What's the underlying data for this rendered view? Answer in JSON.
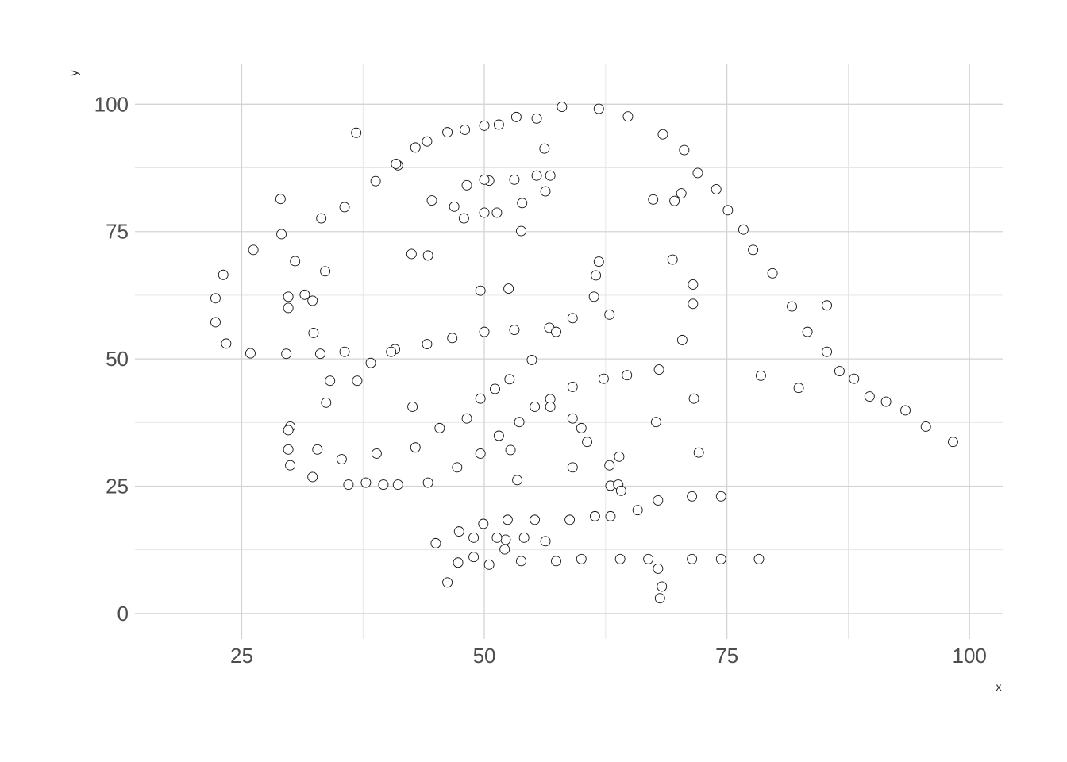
{
  "chart_data": {
    "type": "scatter",
    "title": "",
    "xlabel": "x",
    "ylabel": "y",
    "xlim": [
      14,
      103.5
    ],
    "ylim": [
      -5,
      108
    ],
    "x_ticks": [
      25,
      50,
      75,
      100
    ],
    "x_tick_labels": [
      "25",
      "50",
      "75",
      "100"
    ],
    "y_ticks": [
      0,
      25,
      50,
      75,
      100
    ],
    "y_tick_labels": [
      "0",
      "25",
      "50",
      "75",
      "100"
    ],
    "grid": true,
    "legend": "none",
    "colors": {
      "point_stroke": "#111111",
      "point_fill": "#ffffff",
      "grid": "#d4d4d4",
      "tick_text": "#4d4d4d",
      "background": "#ffffff"
    },
    "points": [
      {
        "x": 32.3,
        "y": 61.4
      },
      {
        "x": 53.4,
        "y": 26.2
      },
      {
        "x": 63.9,
        "y": 30.8
      },
      {
        "x": 70.3,
        "y": 82.5
      },
      {
        "x": 34.1,
        "y": 45.7
      },
      {
        "x": 67.7,
        "y": 37.6
      },
      {
        "x": 53.3,
        "y": 97.5
      },
      {
        "x": 63.0,
        "y": 25.1
      },
      {
        "x": 67.4,
        "y": 81.3
      },
      {
        "x": 32.4,
        "y": 55.1
      },
      {
        "x": 71.6,
        "y": 42.2
      },
      {
        "x": 52.7,
        "y": 32.1
      },
      {
        "x": 72.1,
        "y": 31.6
      },
      {
        "x": 50.5,
        "y": 85.0
      },
      {
        "x": 49.6,
        "y": 63.4
      },
      {
        "x": 56.2,
        "y": 91.3
      },
      {
        "x": 62.9,
        "y": 58.7
      },
      {
        "x": 42.5,
        "y": 70.6
      },
      {
        "x": 52.2,
        "y": 14.5
      },
      {
        "x": 82.4,
        "y": 44.3
      },
      {
        "x": 33.6,
        "y": 67.2
      },
      {
        "x": 42.6,
        "y": 40.6
      },
      {
        "x": 36.8,
        "y": 94.4
      },
      {
        "x": 30.5,
        "y": 69.2
      },
      {
        "x": 41.1,
        "y": 88.0
      },
      {
        "x": 85.3,
        "y": 60.5
      },
      {
        "x": 40.8,
        "y": 51.9
      },
      {
        "x": 53.8,
        "y": 75.1
      },
      {
        "x": 60.0,
        "y": 36.4
      },
      {
        "x": 44.2,
        "y": 70.3
      },
      {
        "x": 29.0,
        "y": 81.4
      },
      {
        "x": 44.6,
        "y": 81.1
      },
      {
        "x": 52.5,
        "y": 63.8
      },
      {
        "x": 69.6,
        "y": 81.0
      },
      {
        "x": 59.1,
        "y": 28.7
      },
      {
        "x": 78.5,
        "y": 46.7
      },
      {
        "x": 22.3,
        "y": 57.2
      },
      {
        "x": 22.3,
        "y": 61.9
      },
      {
        "x": 23.1,
        "y": 66.5
      },
      {
        "x": 23.4,
        "y": 53.0
      },
      {
        "x": 26.2,
        "y": 71.4
      },
      {
        "x": 29.1,
        "y": 74.5
      },
      {
        "x": 33.2,
        "y": 77.6
      },
      {
        "x": 35.6,
        "y": 79.8
      },
      {
        "x": 38.8,
        "y": 84.9
      },
      {
        "x": 40.9,
        "y": 88.3
      },
      {
        "x": 42.9,
        "y": 91.5
      },
      {
        "x": 44.1,
        "y": 92.7
      },
      {
        "x": 46.2,
        "y": 94.5
      },
      {
        "x": 48.0,
        "y": 95.0
      },
      {
        "x": 50.0,
        "y": 95.8
      },
      {
        "x": 51.5,
        "y": 96.0
      },
      {
        "x": 55.4,
        "y": 97.2
      },
      {
        "x": 58.0,
        "y": 99.5
      },
      {
        "x": 61.8,
        "y": 99.1
      },
      {
        "x": 64.8,
        "y": 97.6
      },
      {
        "x": 68.4,
        "y": 94.1
      },
      {
        "x": 70.6,
        "y": 91.0
      },
      {
        "x": 72.0,
        "y": 86.5
      },
      {
        "x": 73.9,
        "y": 83.3
      },
      {
        "x": 75.1,
        "y": 79.2
      },
      {
        "x": 76.7,
        "y": 75.4
      },
      {
        "x": 77.7,
        "y": 71.4
      },
      {
        "x": 79.7,
        "y": 66.8
      },
      {
        "x": 81.7,
        "y": 60.3
      },
      {
        "x": 83.3,
        "y": 55.3
      },
      {
        "x": 85.3,
        "y": 51.4
      },
      {
        "x": 86.6,
        "y": 47.6
      },
      {
        "x": 88.1,
        "y": 46.1
      },
      {
        "x": 89.7,
        "y": 42.6
      },
      {
        "x": 91.4,
        "y": 41.6
      },
      {
        "x": 93.4,
        "y": 39.9
      },
      {
        "x": 95.5,
        "y": 36.7
      },
      {
        "x": 98.3,
        "y": 33.7
      },
      {
        "x": 29.8,
        "y": 62.2
      },
      {
        "x": 29.8,
        "y": 60.0
      },
      {
        "x": 31.5,
        "y": 62.6
      },
      {
        "x": 25.9,
        "y": 51.1
      },
      {
        "x": 29.6,
        "y": 51.0
      },
      {
        "x": 33.1,
        "y": 51.0
      },
      {
        "x": 35.6,
        "y": 51.4
      },
      {
        "x": 38.3,
        "y": 49.2
      },
      {
        "x": 40.4,
        "y": 51.4
      },
      {
        "x": 44.1,
        "y": 52.9
      },
      {
        "x": 46.7,
        "y": 54.1
      },
      {
        "x": 50.0,
        "y": 55.3
      },
      {
        "x": 53.1,
        "y": 55.7
      },
      {
        "x": 56.7,
        "y": 56.1
      },
      {
        "x": 57.4,
        "y": 55.3
      },
      {
        "x": 59.1,
        "y": 58.0
      },
      {
        "x": 61.3,
        "y": 62.2
      },
      {
        "x": 61.5,
        "y": 66.4
      },
      {
        "x": 61.8,
        "y": 69.1
      },
      {
        "x": 69.4,
        "y": 69.5
      },
      {
        "x": 71.5,
        "y": 64.6
      },
      {
        "x": 71.5,
        "y": 60.8
      },
      {
        "x": 70.4,
        "y": 53.7
      },
      {
        "x": 68.0,
        "y": 47.9
      },
      {
        "x": 64.7,
        "y": 46.8
      },
      {
        "x": 62.3,
        "y": 46.1
      },
      {
        "x": 46.9,
        "y": 79.9
      },
      {
        "x": 47.9,
        "y": 77.6
      },
      {
        "x": 48.2,
        "y": 84.1
      },
      {
        "x": 50.0,
        "y": 85.2
      },
      {
        "x": 50.0,
        "y": 78.7
      },
      {
        "x": 51.3,
        "y": 78.7
      },
      {
        "x": 53.1,
        "y": 85.2
      },
      {
        "x": 53.9,
        "y": 80.6
      },
      {
        "x": 55.4,
        "y": 86.0
      },
      {
        "x": 56.3,
        "y": 82.9
      },
      {
        "x": 56.8,
        "y": 86.0
      },
      {
        "x": 33.7,
        "y": 41.4
      },
      {
        "x": 36.9,
        "y": 45.7
      },
      {
        "x": 30.0,
        "y": 36.7
      },
      {
        "x": 29.8,
        "y": 36.0
      },
      {
        "x": 29.8,
        "y": 32.2
      },
      {
        "x": 30.0,
        "y": 29.1
      },
      {
        "x": 32.3,
        "y": 26.8
      },
      {
        "x": 32.8,
        "y": 32.2
      },
      {
        "x": 35.3,
        "y": 30.3
      },
      {
        "x": 36.0,
        "y": 25.3
      },
      {
        "x": 37.8,
        "y": 25.7
      },
      {
        "x": 38.9,
        "y": 31.4
      },
      {
        "x": 39.6,
        "y": 25.3
      },
      {
        "x": 41.1,
        "y": 25.3
      },
      {
        "x": 42.9,
        "y": 32.6
      },
      {
        "x": 44.2,
        "y": 25.7
      },
      {
        "x": 45.4,
        "y": 36.4
      },
      {
        "x": 47.2,
        "y": 28.7
      },
      {
        "x": 48.2,
        "y": 38.3
      },
      {
        "x": 49.6,
        "y": 31.4
      },
      {
        "x": 49.6,
        "y": 42.2
      },
      {
        "x": 51.1,
        "y": 44.1
      },
      {
        "x": 51.5,
        "y": 34.9
      },
      {
        "x": 52.6,
        "y": 46.0
      },
      {
        "x": 53.6,
        "y": 37.6
      },
      {
        "x": 54.9,
        "y": 49.8
      },
      {
        "x": 55.2,
        "y": 40.6
      },
      {
        "x": 56.8,
        "y": 42.1
      },
      {
        "x": 56.8,
        "y": 40.6
      },
      {
        "x": 59.1,
        "y": 44.5
      },
      {
        "x": 59.1,
        "y": 38.3
      },
      {
        "x": 60.6,
        "y": 33.7
      },
      {
        "x": 62.9,
        "y": 29.1
      },
      {
        "x": 63.8,
        "y": 25.3
      },
      {
        "x": 64.1,
        "y": 24.1
      },
      {
        "x": 45.0,
        "y": 13.8
      },
      {
        "x": 47.4,
        "y": 16.1
      },
      {
        "x": 48.9,
        "y": 14.9
      },
      {
        "x": 49.9,
        "y": 17.6
      },
      {
        "x": 51.3,
        "y": 14.9
      },
      {
        "x": 52.1,
        "y": 12.6
      },
      {
        "x": 52.4,
        "y": 18.4
      },
      {
        "x": 54.1,
        "y": 14.9
      },
      {
        "x": 55.2,
        "y": 18.4
      },
      {
        "x": 56.3,
        "y": 14.2
      },
      {
        "x": 58.8,
        "y": 18.4
      },
      {
        "x": 61.4,
        "y": 19.1
      },
      {
        "x": 63.0,
        "y": 19.1
      },
      {
        "x": 65.8,
        "y": 20.3
      },
      {
        "x": 67.9,
        "y": 22.2
      },
      {
        "x": 71.4,
        "y": 23.0
      },
      {
        "x": 74.4,
        "y": 23.0
      },
      {
        "x": 46.2,
        "y": 6.1
      },
      {
        "x": 47.3,
        "y": 10.0
      },
      {
        "x": 48.9,
        "y": 11.1
      },
      {
        "x": 50.5,
        "y": 9.6
      },
      {
        "x": 53.8,
        "y": 10.3
      },
      {
        "x": 57.4,
        "y": 10.3
      },
      {
        "x": 60.0,
        "y": 10.7
      },
      {
        "x": 64.0,
        "y": 10.7
      },
      {
        "x": 66.9,
        "y": 10.7
      },
      {
        "x": 67.9,
        "y": 8.8
      },
      {
        "x": 68.3,
        "y": 5.3
      },
      {
        "x": 68.1,
        "y": 3.0
      },
      {
        "x": 71.4,
        "y": 10.7
      },
      {
        "x": 74.4,
        "y": 10.7
      },
      {
        "x": 78.3,
        "y": 10.7
      }
    ]
  }
}
